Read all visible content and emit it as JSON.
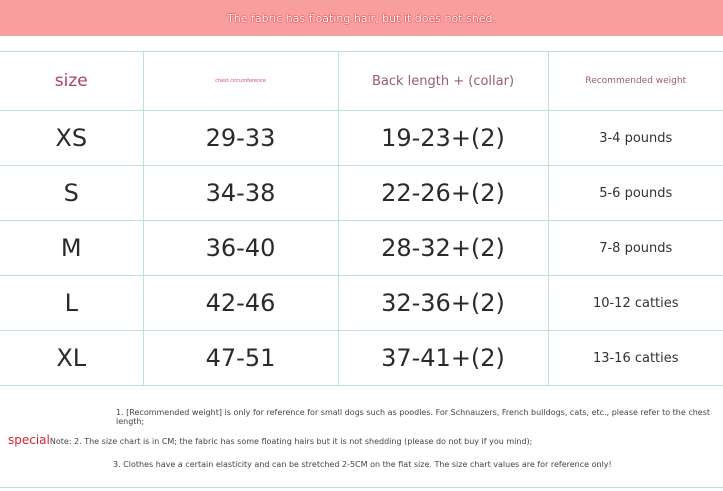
{
  "banner": "The fabric has floating hair, but it does not shed.",
  "headers": [
    "size",
    "chest circumference",
    "Back length + (collar)",
    "Recommended weight"
  ],
  "rows": [
    [
      "XS",
      "29-33",
      "19-23+(2)",
      "3-4 pounds"
    ],
    [
      "S",
      "34-38",
      "22-26+(2)",
      "5-6 pounds"
    ],
    [
      "M",
      "36-40",
      "28-32+(2)",
      "7-8 pounds"
    ],
    [
      "L",
      "42-46",
      "32-36+(2)",
      "10-12 catties"
    ],
    [
      "XL",
      "47-51",
      "37-41+(2)",
      "13-16 catties"
    ]
  ],
  "notes": {
    "n1": "1. [Recommended weight] is only for reference for small dogs such as poodles. For Schnauzers, French bulldogs, cats, etc., please refer to the chest length;",
    "special": "special",
    "n2": "Note: 2. The size chart is in CM; the fabric has some floating hairs but it is not shedding (please do not buy if you mind);",
    "n3": "3. Clothes have a certain elasticity and can be stretched 2-5CM on the flat size. The size chart values are for reference only!"
  }
}
